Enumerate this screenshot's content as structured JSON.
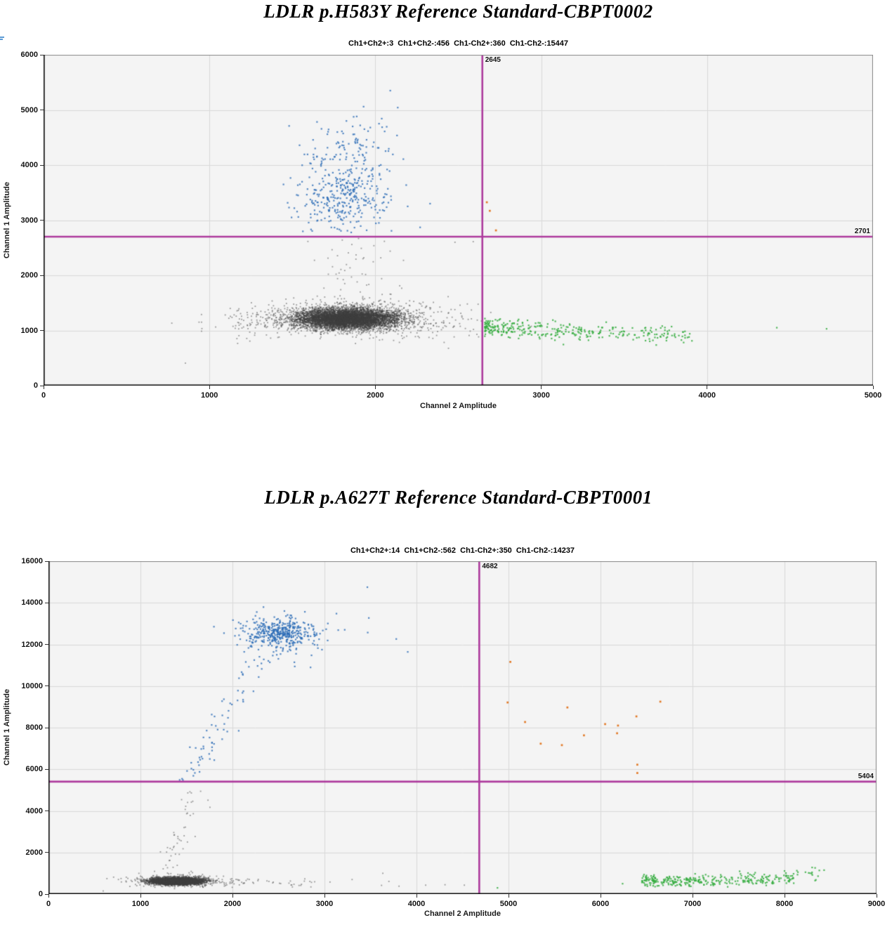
{
  "colors": {
    "blue": "#2a6cb6",
    "green": "#35ad3f",
    "orange": "#e2741c",
    "gray": "#3f3f3f",
    "threshold": "#ad3a9d",
    "grid": "#d9d9d9",
    "plot_bg": "#f4f4f4",
    "axis": "#111111",
    "frame": "#888888",
    "corner_mark": "#5b9bd5"
  },
  "chart_data": [
    {
      "type": "scatter",
      "title": "LDLR p.H583Y Reference Standard-CBPT0002",
      "subtitle": "Ch1+Ch2+:3  Ch1+Ch2-:456  Ch1-Ch2+:360  Ch1-Ch2-:15447",
      "xlabel": "Channel 2 Amplitude",
      "ylabel": "Channel 1 Amplitude",
      "xlim": [
        0,
        5000
      ],
      "ylim": [
        0,
        6000
      ],
      "x_ticks": [
        0,
        1000,
        2000,
        3000,
        4000,
        5000
      ],
      "y_ticks": [
        0,
        1000,
        2000,
        3000,
        4000,
        5000,
        6000
      ],
      "thresholds": {
        "ch2_x": 2645,
        "ch1_y": 2701,
        "x_label": "2645",
        "y_label": "2701"
      },
      "quadrant_counts": {
        "ch1pos_ch2pos": 3,
        "ch1pos_ch2neg": 456,
        "ch1neg_ch2pos": 360,
        "ch1neg_ch2neg": 15447
      },
      "clusters": [
        {
          "color": "gray",
          "kind": "gauss",
          "n": 6500,
          "cx": 1830,
          "cy": 1215,
          "sx": 150,
          "sy": 92,
          "seed": 11
        },
        {
          "color": "gray",
          "kind": "gauss",
          "n": 850,
          "cx": 1840,
          "cy": 1225,
          "sx": 290,
          "sy": 148,
          "seed": 12,
          "ymin": 760
        },
        {
          "color": "gray",
          "kind": "hband",
          "n": 26,
          "x0": 1130,
          "x1": 1520,
          "cy": 1000,
          "sy": 110,
          "seed": 13
        },
        {
          "color": "gray",
          "kind": "hband",
          "n": 38,
          "x0": 2150,
          "x1": 2640,
          "cy": 1060,
          "sy": 115,
          "seed": 14
        },
        {
          "color": "gray",
          "kind": "trail",
          "n": 55,
          "y0": 1480,
          "y1": 2690,
          "xa": 1850,
          "xb": 1850,
          "sx": 145,
          "seed": 15
        },
        {
          "color": "blue",
          "kind": "gauss",
          "n": 300,
          "cx": 1815,
          "cy": 3380,
          "sx": 130,
          "sy": 290,
          "seed": 16,
          "ymin": 2720
        },
        {
          "color": "blue",
          "kind": "gauss",
          "n": 135,
          "cx": 1845,
          "cy": 4200,
          "sx": 150,
          "sy": 420,
          "seed": 17,
          "ymin": 2720,
          "ymax": 5420
        },
        {
          "color": "green",
          "kind": "slope",
          "n": 330,
          "x0": 2660,
          "span": 1250,
          "pow": 1.7,
          "y0": 1045,
          "slope": -0.12,
          "sy": 82,
          "seed": 18,
          "ymin": 720
        }
      ],
      "outliers": {
        "gray": [
          [
            855,
            407
          ],
          [
            1170,
            765
          ],
          [
            1225,
            855
          ],
          [
            1420,
            880
          ],
          [
            2480,
            2600
          ],
          [
            2590,
            2610
          ]
        ],
        "blue": [
          [
            2195,
            3250
          ],
          [
            2270,
            2870
          ],
          [
            2330,
            3300
          ],
          [
            1545,
            3650
          ],
          [
            1495,
            3050
          ],
          [
            2090,
            5350
          ]
        ],
        "orange": [
          [
            2672,
            3325
          ],
          [
            2690,
            3170
          ],
          [
            2727,
            2815
          ]
        ],
        "green": [
          [
            4420,
            1050
          ],
          [
            4720,
            1030
          ]
        ]
      }
    },
    {
      "type": "scatter",
      "title": "LDLR p.A627T Reference Standard-CBPT0001",
      "subtitle": "Ch1+Ch2+:14  Ch1+Ch2-:562  Ch1-Ch2+:350  Ch1-Ch2-:14237",
      "xlabel": "Channel 2 Amplitude",
      "ylabel": "Channel 1 Amplitude",
      "xlim": [
        0,
        9000
      ],
      "ylim": [
        0,
        16000
      ],
      "x_ticks": [
        0,
        1000,
        2000,
        3000,
        4000,
        5000,
        6000,
        7000,
        8000,
        9000
      ],
      "y_ticks": [
        0,
        2000,
        4000,
        6000,
        8000,
        10000,
        12000,
        14000,
        16000
      ],
      "thresholds": {
        "ch2_x": 4682,
        "ch1_y": 5404,
        "x_label": "4682",
        "y_label": "5404"
      },
      "quadrant_counts": {
        "ch1pos_ch2pos": 14,
        "ch1pos_ch2neg": 562,
        "ch1neg_ch2pos": 350,
        "ch1neg_ch2neg": 14237
      },
      "clusters": [
        {
          "color": "gray",
          "kind": "gauss",
          "n": 5200,
          "cx": 1390,
          "cy": 620,
          "sx": 130,
          "sy": 78,
          "seed": 21,
          "ymin": 260
        },
        {
          "color": "gray",
          "kind": "gauss",
          "n": 420,
          "cx": 1430,
          "cy": 650,
          "sx": 255,
          "sy": 135,
          "seed": 22,
          "ymin": 240
        },
        {
          "color": "gray",
          "kind": "hband",
          "n": 40,
          "x0": 1900,
          "x1": 2950,
          "cy": 520,
          "sy": 125,
          "seed": 23
        },
        {
          "color": "gray",
          "kind": "trail",
          "n": 48,
          "y0": 1000,
          "y1": 5350,
          "xa": 1300,
          "xb": 1620,
          "sx": 85,
          "seed": 24
        },
        {
          "color": "blue",
          "kind": "gauss",
          "n": 320,
          "cx": 2520,
          "cy": 12550,
          "sx": 165,
          "sy": 330,
          "seed": 25
        },
        {
          "color": "blue",
          "kind": "gauss",
          "n": 130,
          "cx": 2530,
          "cy": 12350,
          "sx": 310,
          "sy": 620,
          "seed": 26,
          "ymax": 13650
        },
        {
          "color": "blue",
          "kind": "trail",
          "n": 68,
          "y0": 5450,
          "y1": 11400,
          "xa": 1510,
          "xb": 2310,
          "sx": 88,
          "seed": 27
        },
        {
          "color": "green",
          "kind": "slope",
          "n": 300,
          "x0": 6450,
          "span": 1660,
          "pow": 1.25,
          "y0": 620,
          "slope": 0.05,
          "sy": 150,
          "seed": 28,
          "ymin": 330,
          "ymax": 1150
        },
        {
          "color": "green",
          "kind": "gauss",
          "n": 22,
          "cx": 8150,
          "cy": 980,
          "sx": 140,
          "sy": 170,
          "seed": 29
        }
      ],
      "outliers": {
        "gray": [
          [
            595,
            150
          ],
          [
            3060,
            580
          ],
          [
            3300,
            700
          ],
          [
            3620,
            420
          ],
          [
            3634,
            1000
          ],
          [
            3700,
            610
          ],
          [
            3810,
            380
          ],
          [
            4100,
            430
          ],
          [
            4310,
            450
          ],
          [
            4520,
            430
          ]
        ],
        "blue": [
          [
            3466,
            14750
          ],
          [
            3470,
            12570
          ],
          [
            3780,
            12260
          ],
          [
            3905,
            11640
          ],
          [
            3130,
            13480
          ]
        ],
        "orange": [
          [
            5020,
            11160
          ],
          [
            4990,
            9210
          ],
          [
            5180,
            8270
          ],
          [
            5350,
            7230
          ],
          [
            5580,
            7160
          ],
          [
            5640,
            8970
          ],
          [
            5820,
            7630
          ],
          [
            6050,
            8170
          ],
          [
            6190,
            8100
          ],
          [
            6180,
            7730
          ],
          [
            6390,
            8540
          ],
          [
            6400,
            6220
          ],
          [
            6400,
            5820
          ],
          [
            6650,
            9250
          ]
        ],
        "green": [
          [
            4880,
            300
          ],
          [
            6240,
            500
          ],
          [
            8430,
            1150
          ],
          [
            8300,
            1280
          ]
        ]
      }
    }
  ]
}
